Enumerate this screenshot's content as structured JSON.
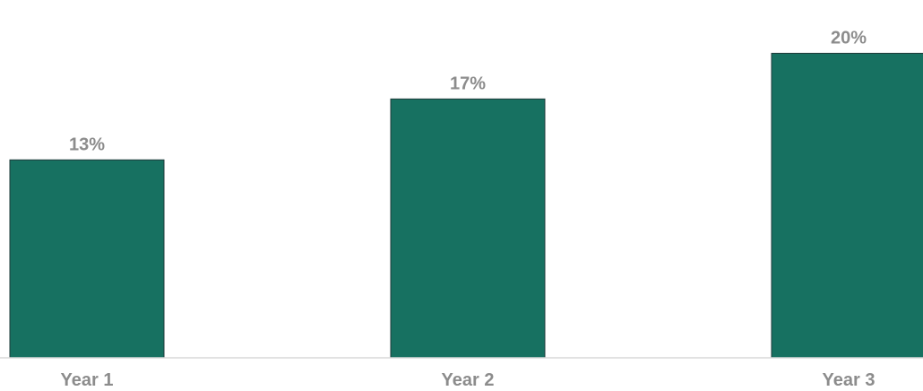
{
  "chart_data": {
    "type": "bar",
    "categories": [
      "Year 1",
      "Year 2",
      "Year 3"
    ],
    "values": [
      13,
      17,
      20
    ],
    "data_labels": [
      "13%",
      "17%",
      "20%"
    ],
    "ylim": [
      0,
      23.5
    ],
    "grid": false,
    "legend": "none",
    "colors": {
      "bar": "#177161",
      "bar_border": "#1f3a3a",
      "label": "#8c8c8c",
      "axis": "#d9d9d9"
    }
  }
}
